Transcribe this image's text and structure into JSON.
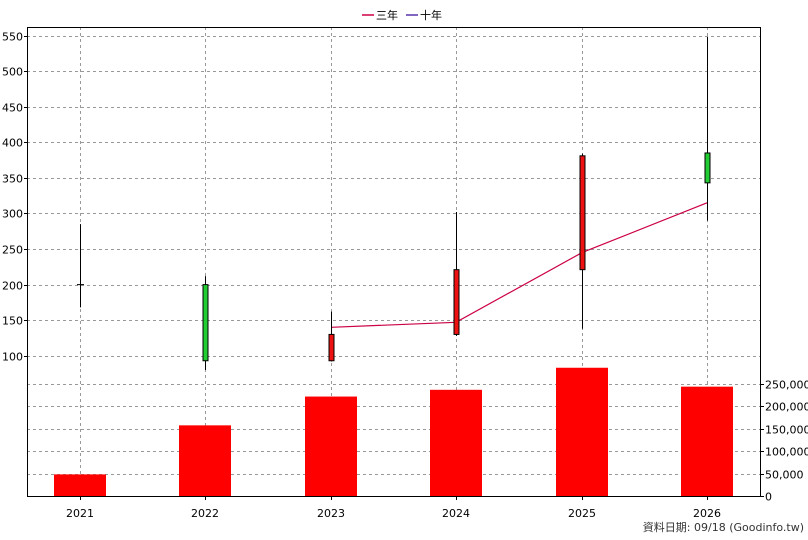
{
  "chart_data": {
    "type": "candlestick",
    "legend": {
      "placement": "top-center",
      "items": [
        {
          "label": "三年",
          "color": "#cc0044"
        },
        {
          "label": "十年",
          "color": "#5533aa"
        }
      ]
    },
    "categories": [
      "2021",
      "2022",
      "2023",
      "2024",
      "2025",
      "2026"
    ],
    "price_axis": {
      "ticks": [
        100,
        150,
        200,
        250,
        300,
        350,
        400,
        450,
        500,
        550
      ],
      "tick_labels": [
        "100",
        "150",
        "200",
        "250",
        "300",
        "350",
        "400",
        "450",
        "500",
        "550"
      ],
      "range": [
        80,
        555
      ],
      "position": "left"
    },
    "volume_axis": {
      "ticks": [
        0,
        50000,
        100000,
        150000,
        200000,
        250000
      ],
      "tick_labels": [
        "0",
        "50,000",
        "100,000",
        "150,000",
        "200,000",
        "250,000"
      ],
      "range": [
        0,
        280000
      ],
      "position": "right"
    },
    "candles": [
      {
        "year": "2021",
        "open": 200,
        "close": 200,
        "high": 285,
        "low": 168,
        "color": "#000000"
      },
      {
        "year": "2022",
        "open": 200,
        "close": 93,
        "high": 212,
        "low": 80,
        "color": "#22cc33"
      },
      {
        "year": "2023",
        "open": 93,
        "close": 130,
        "high": 162,
        "low": 92,
        "color": "#ee1111"
      },
      {
        "year": "2024",
        "open": 130,
        "close": 221,
        "high": 302,
        "low": 128,
        "color": "#ee1111"
      },
      {
        "year": "2025",
        "open": 221,
        "close": 381,
        "high": 384,
        "low": 138,
        "color": "#ee1111"
      },
      {
        "year": "2026",
        "open": 385,
        "close": 343,
        "high": 548,
        "low": 290,
        "color": "#22cc33"
      }
    ],
    "series": [
      {
        "name": "三年",
        "color": "#cc0044",
        "x": [
          "2023",
          "2024",
          "2025",
          "2026"
        ],
        "values": [
          140,
          147,
          245,
          315
        ]
      }
    ],
    "volume": {
      "color": "#ff0000",
      "values": [
        48000,
        157000,
        221000,
        236000,
        285000,
        243000
      ]
    },
    "grid": true
  },
  "footer": {
    "source": "資料日期: 09/18  (Goodinfo.tw)"
  }
}
